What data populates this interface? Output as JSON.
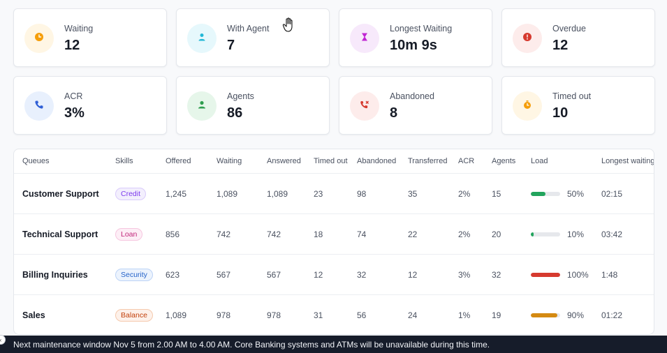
{
  "kpis": [
    {
      "label": "Waiting",
      "value": "12",
      "icon": "clock-icon",
      "bg": "#fff6e4",
      "fg": "#f59e0b"
    },
    {
      "label": "With Agent",
      "value": "7",
      "icon": "user-icon",
      "bg": "#e6f8fc",
      "fg": "#22b8d6"
    },
    {
      "label": "Longest Waiting",
      "value": "10m 9s",
      "icon": "hourglass-icon",
      "bg": "#f7e9fb",
      "fg": "#c026d3"
    },
    {
      "label": "Overdue",
      "value": "12",
      "icon": "alert-icon",
      "bg": "#fdeceb",
      "fg": "#d63a2f"
    },
    {
      "label": "ACR",
      "value": "3%",
      "icon": "phone-icon",
      "bg": "#e8f0fd",
      "fg": "#2f5fd6"
    },
    {
      "label": "Agents",
      "value": "86",
      "icon": "agent-icon",
      "bg": "#e6f6ea",
      "fg": "#2f9e4f"
    },
    {
      "label": "Abandoned",
      "value": "8",
      "icon": "phone-missed-icon",
      "bg": "#fdeceb",
      "fg": "#d63a2f"
    },
    {
      "label": "Timed out",
      "value": "10",
      "icon": "timer-icon",
      "bg": "#fff6e4",
      "fg": "#f59e0b"
    }
  ],
  "table": {
    "headers": [
      "Queues",
      "Skills",
      "Offered",
      "Waiting",
      "Answered",
      "Timed out",
      "Abandoned",
      "Transferred",
      "ACR",
      "Agents",
      "Load",
      "Longest waiting"
    ],
    "rows": [
      {
        "queue": "Customer Support",
        "skill": "Credit",
        "skill_color": "#7c3aed",
        "skill_bg": "#f3effd",
        "skill_border": "#d9cbfb",
        "offered": "1,245",
        "waiting": "1,089",
        "answered": "1,089",
        "timed_out": "23",
        "abandoned": "98",
        "transferred": "35",
        "acr": "2%",
        "agents": "15",
        "load": 0.5,
        "load_label": "50%",
        "load_color": "#22a45d",
        "longest": "02:15"
      },
      {
        "queue": "Technical Support",
        "skill": "Loan",
        "skill_color": "#c0267a",
        "skill_bg": "#fdeef6",
        "skill_border": "#f6c6df",
        "offered": "856",
        "waiting": "742",
        "answered": "742",
        "timed_out": "18",
        "abandoned": "74",
        "transferred": "22",
        "acr": "2%",
        "agents": "20",
        "load": 0.1,
        "load_label": "10%",
        "load_color": "#22a45d",
        "longest": "03:42"
      },
      {
        "queue": "Billing Inquiries",
        "skill": "Security",
        "skill_color": "#2563c9",
        "skill_bg": "#ecf3fd",
        "skill_border": "#bcd3f6",
        "offered": "623",
        "waiting": "567",
        "answered": "567",
        "timed_out": "12",
        "abandoned": "32",
        "transferred": "12",
        "acr": "3%",
        "agents": "32",
        "load": 1.0,
        "load_label": "100%",
        "load_color": "#d63a2f",
        "longest": "1:48"
      },
      {
        "queue": "Sales",
        "skill": "Balance",
        "skill_color": "#c2410c",
        "skill_bg": "#fdf1ea",
        "skill_border": "#f5c9ad",
        "offered": "1,089",
        "waiting": "978",
        "answered": "978",
        "timed_out": "31",
        "abandoned": "56",
        "transferred": "24",
        "acr": "1%",
        "agents": "19",
        "load": 0.9,
        "load_label": "90%",
        "load_color": "#d48a12",
        "longest": "01:22"
      }
    ]
  },
  "footer": {
    "message": "Next maintenance window Nov 5 from 2.00 AM to 4.00 AM. Core Banking systems and ATMs will be unavailable during this time."
  }
}
